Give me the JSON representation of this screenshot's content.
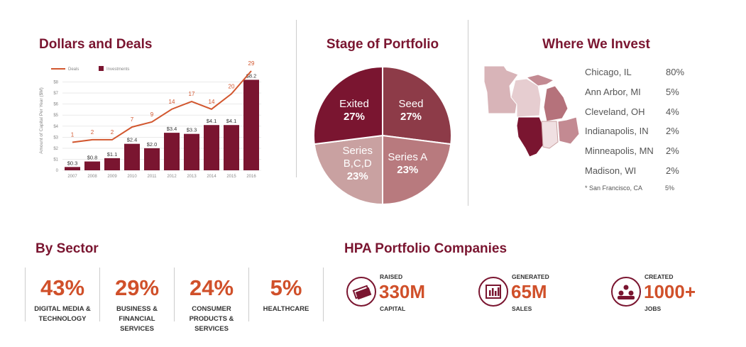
{
  "chart_data": [
    {
      "type": "combo",
      "title": "Dollars and Deals",
      "y_label": "Amount of Capital Per Year ($M)",
      "categories": [
        "2007",
        "2008",
        "2009",
        "2010",
        "2011",
        "2012",
        "2013",
        "2014",
        "2015",
        "2016"
      ],
      "series": [
        {
          "name": "Deals",
          "type": "line",
          "color": "#d2572f",
          "axis": "y2",
          "values": [
            1,
            2,
            2,
            7,
            9,
            14,
            17,
            14,
            20,
            29
          ]
        },
        {
          "name": "Investments",
          "type": "bar",
          "color": "#7a1530",
          "values": [
            0.3,
            0.8,
            1.1,
            2.4,
            2.0,
            3.4,
            3.3,
            4.1,
            4.1,
            8.2
          ],
          "value_labels": [
            "$0.3",
            "$0.8",
            "$1.1",
            "$2.4",
            "$2.0",
            "$3.4",
            "$3.3",
            "$4.1",
            "$4.1",
            "$8.2"
          ]
        }
      ],
      "ylim": [
        0,
        9
      ],
      "yticks": [
        0,
        {
          "value": 1,
          "label": "$1"
        },
        {
          "value": 2,
          "label": "$2"
        },
        {
          "value": 3,
          "label": "$3"
        },
        {
          "value": 4,
          "label": "$4"
        },
        {
          "value": 5,
          "label": "$5"
        },
        {
          "value": 6,
          "label": "$6"
        },
        {
          "value": 7,
          "label": "$7"
        },
        {
          "value": 8,
          "label": "$8"
        }
      ],
      "y2lim": [
        -10,
        29
      ],
      "grid": true,
      "legend": "top-left"
    },
    {
      "type": "pie",
      "title": "Stage of Portfolio",
      "categories": [
        "Seed",
        "Series A",
        "Series B,C,D",
        "Exited"
      ],
      "values": [
        27,
        23,
        23,
        27
      ],
      "value_labels": [
        "27%",
        "23%",
        "23%",
        "27%"
      ],
      "colors": [
        "#8d3b48",
        "#b87a7e",
        "#c9a1a1",
        "#7a1530"
      ]
    }
  ],
  "map": {
    "title": "Where We Invest",
    "locations": [
      [
        "Chicago, IL",
        "80%"
      ],
      [
        "Ann Arbor, MI",
        "5%"
      ],
      [
        "Cleveland, OH",
        "4%"
      ],
      [
        "Indianapolis, IN",
        "2%"
      ],
      [
        "Minneapolis, MN",
        "2%"
      ],
      [
        "Madison, WI",
        "2%"
      ]
    ],
    "footnote": [
      "* San Francisco, CA",
      "5%"
    ]
  },
  "sector": {
    "title": "By Sector",
    "items": [
      [
        "43%",
        "DIGITAL MEDIA & TECHNOLOGY"
      ],
      [
        "29%",
        "BUSINESS & FINANCIAL SERVICES"
      ],
      [
        "24%",
        "CONSUMER PRODUCTS & SERVICES"
      ],
      [
        "5%",
        "HEALTHCARE"
      ]
    ]
  },
  "portfolio": {
    "title": "HPA Portfolio Companies",
    "items": [
      [
        "RAISED",
        "330M",
        "CAPITAL"
      ],
      [
        "GENERATED",
        "65M",
        "SALES"
      ],
      [
        "CREATED",
        "1000+",
        "JOBS"
      ]
    ]
  }
}
